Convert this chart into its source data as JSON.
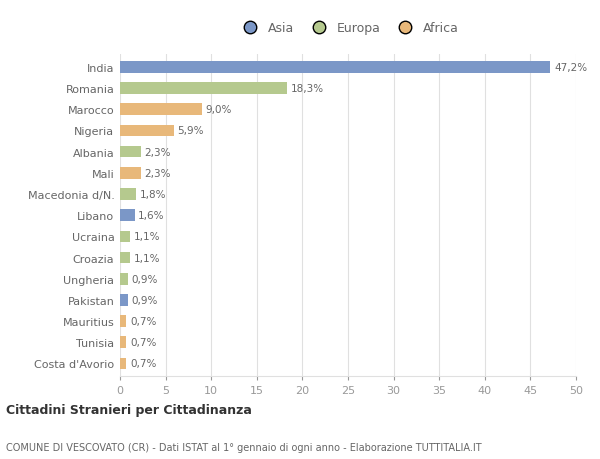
{
  "countries": [
    "India",
    "Romania",
    "Marocco",
    "Nigeria",
    "Albania",
    "Mali",
    "Macedonia d/N.",
    "Libano",
    "Ucraina",
    "Croazia",
    "Ungheria",
    "Pakistan",
    "Mauritius",
    "Tunisia",
    "Costa d'Avorio"
  ],
  "values": [
    47.2,
    18.3,
    9.0,
    5.9,
    2.3,
    2.3,
    1.8,
    1.6,
    1.1,
    1.1,
    0.9,
    0.9,
    0.7,
    0.7,
    0.7
  ],
  "labels": [
    "47,2%",
    "18,3%",
    "9,0%",
    "5,9%",
    "2,3%",
    "2,3%",
    "1,8%",
    "1,6%",
    "1,1%",
    "1,1%",
    "0,9%",
    "0,9%",
    "0,7%",
    "0,7%",
    "0,7%"
  ],
  "continents": [
    "Asia",
    "Europa",
    "Africa",
    "Africa",
    "Europa",
    "Africa",
    "Europa",
    "Asia",
    "Europa",
    "Europa",
    "Europa",
    "Asia",
    "Africa",
    "Africa",
    "Africa"
  ],
  "colors": {
    "Asia": "#7b97c7",
    "Europa": "#b5c98e",
    "Africa": "#e8b87a"
  },
  "title1": "Cittadini Stranieri per Cittadinanza",
  "title2": "COMUNE DI VESCOVATO (CR) - Dati ISTAT al 1° gennaio di ogni anno - Elaborazione TUTTITALIA.IT",
  "xlim": [
    0,
    50
  ],
  "xticks": [
    0,
    5,
    10,
    15,
    20,
    25,
    30,
    35,
    40,
    45,
    50
  ],
  "background_color": "#ffffff",
  "grid_color": "#e0e0e0",
  "bar_height": 0.55,
  "label_fontsize": 7.5,
  "ytick_fontsize": 8,
  "xtick_fontsize": 8,
  "label_color": "#666666",
  "ytick_color": "#666666",
  "xtick_color": "#999999"
}
